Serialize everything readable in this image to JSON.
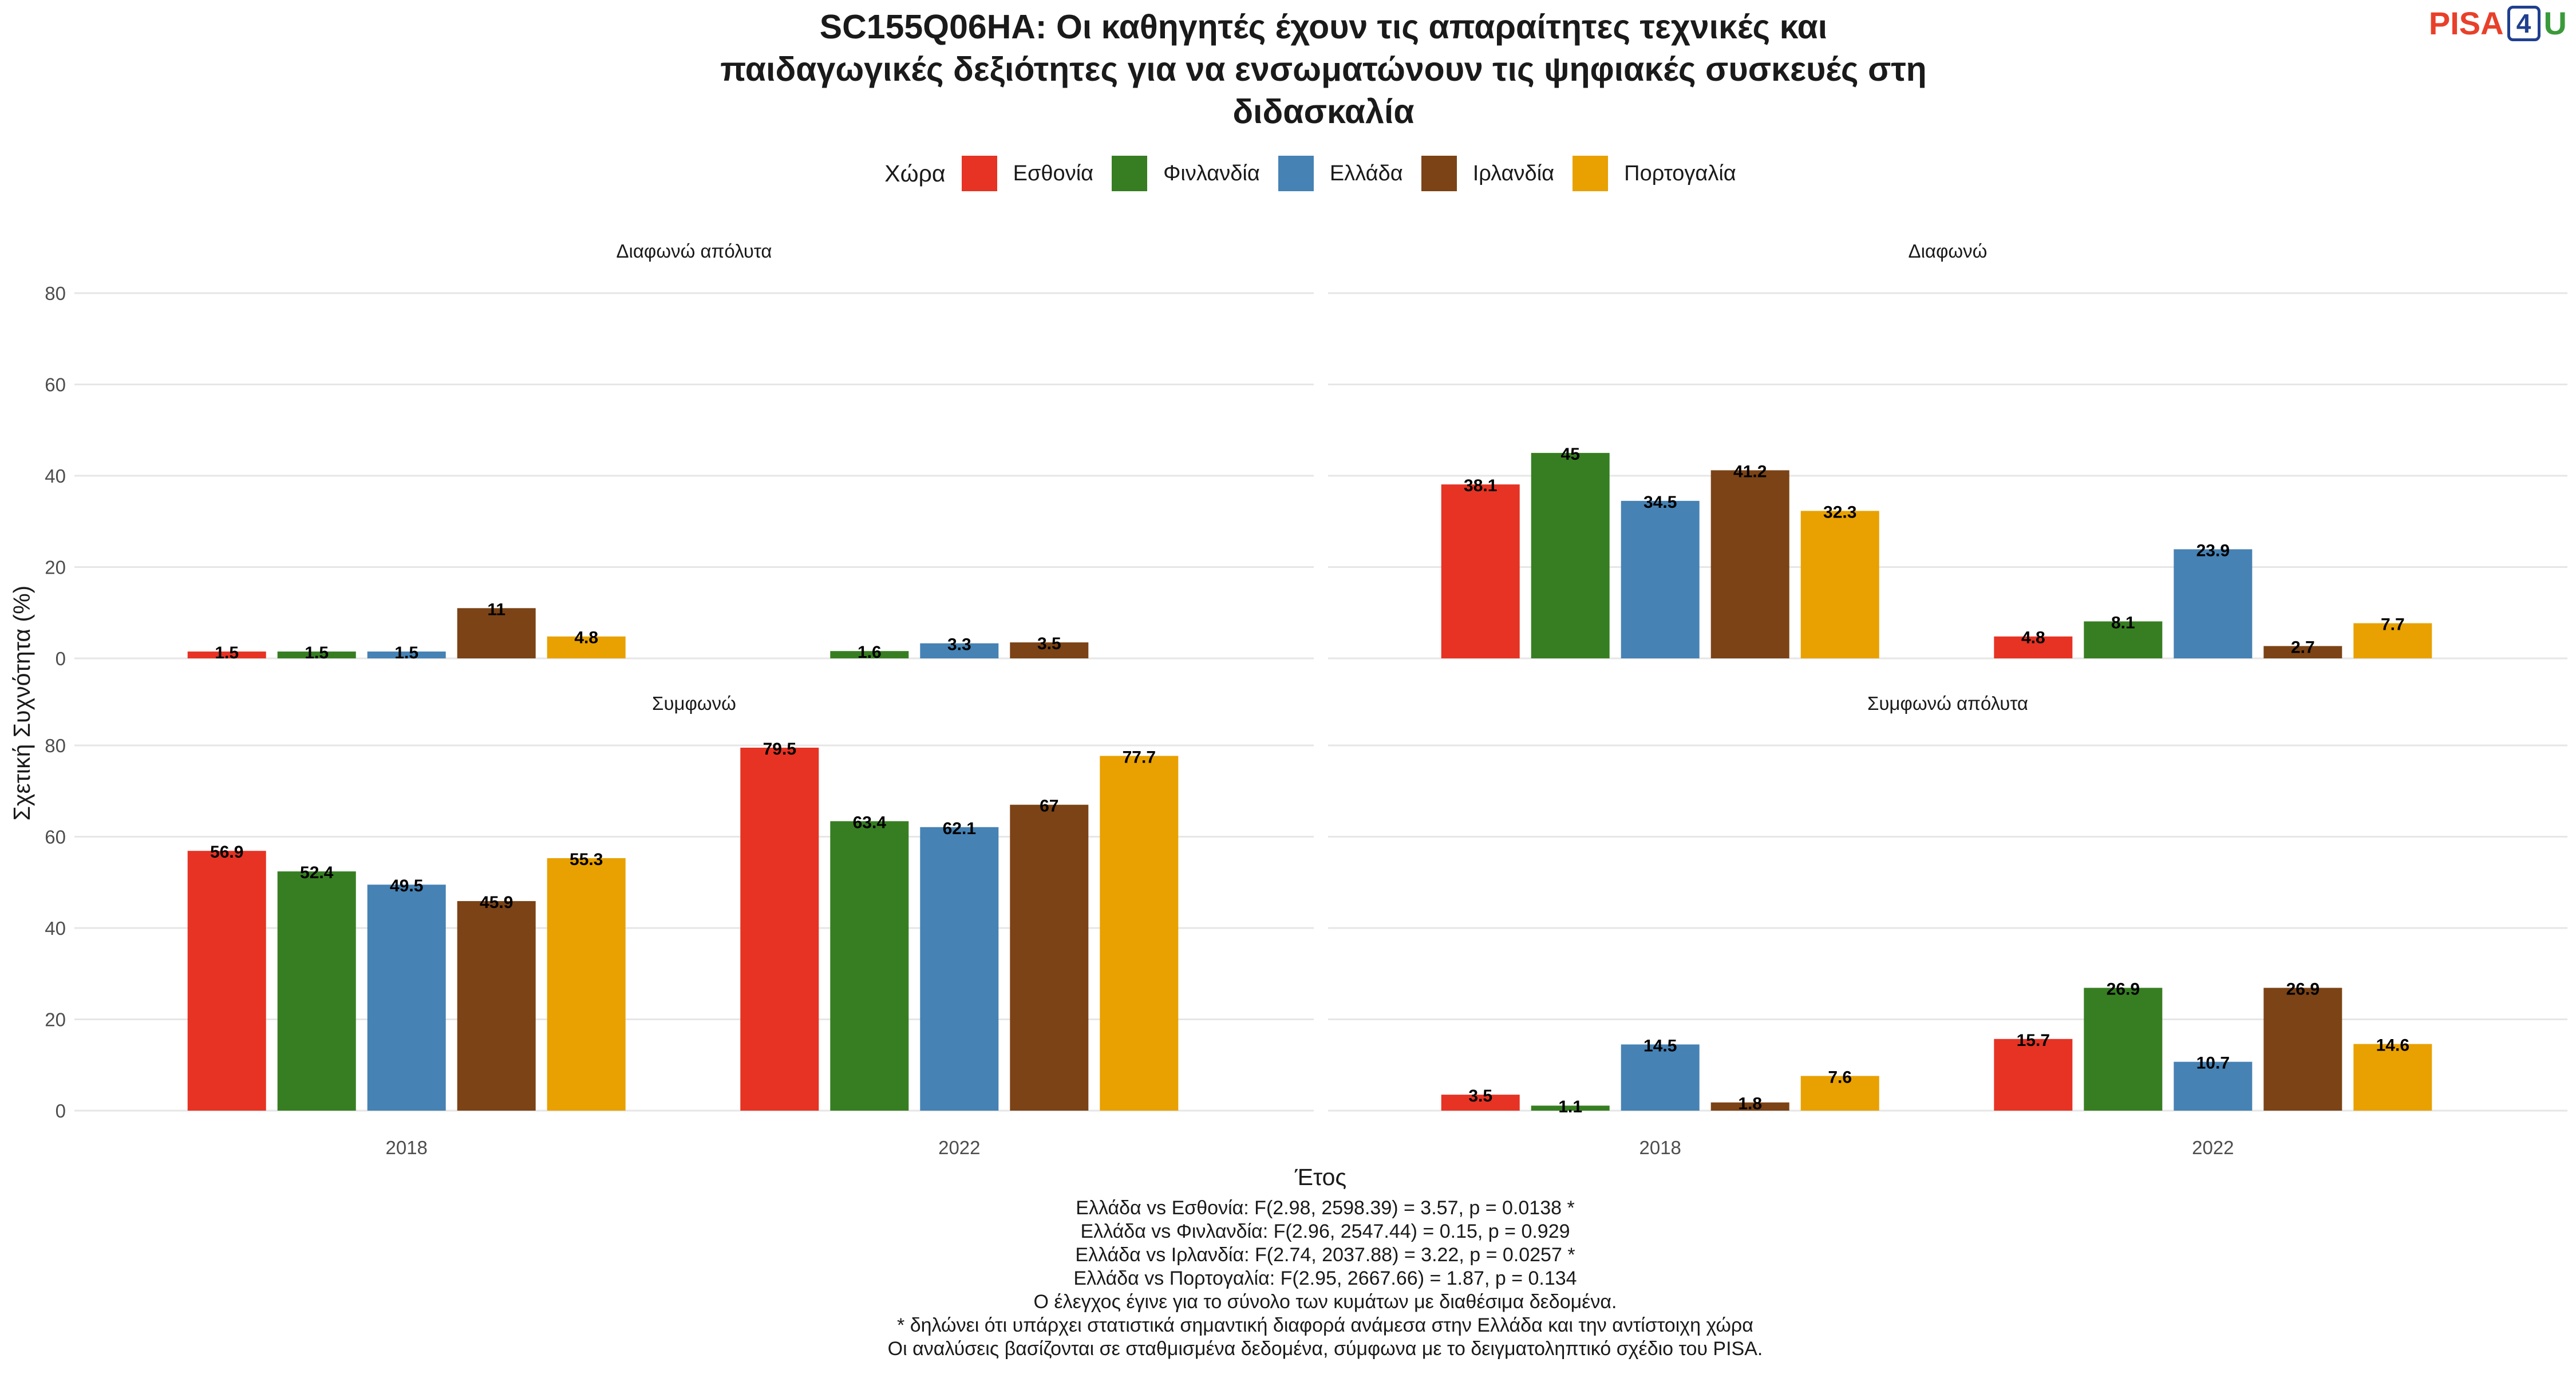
{
  "title_lines": [
    "SC155Q06HA: Οι καθηγητές έχουν τις απαραίτητες τεχνικές και",
    "παιδαγωγικές δεξιότητες για να ενσωματώνουν τις ψηφιακές συσκευές στη",
    "διδασκαλία"
  ],
  "logo": {
    "text": "PISA",
    "digit": "4",
    "suffix": "U"
  },
  "colors": {
    "Εσθονία": "#e63324",
    "Φινλανδία": "#377e22",
    "Ελλάδα": "#4682b4",
    "Ιρλανδία": "#7b4316",
    "Πορτογαλία": "#e8a100"
  },
  "legend": {
    "title": "Χώρα",
    "items": [
      "Εσθονία",
      "Φινλανδία",
      "Ελλάδα",
      "Ιρλανδία",
      "Πορτογαλία"
    ]
  },
  "chart_data": {
    "type": "bar",
    "ylabel": "Σχετική Συχνότητα (%)",
    "xlabel": "Έτος",
    "ylim": [
      0,
      80
    ],
    "yticks": [
      0,
      20,
      40,
      60,
      80
    ],
    "categories": [
      "2018",
      "2022"
    ],
    "grid": true,
    "legend_position": "top",
    "facets": [
      {
        "title": "Διαφωνώ απόλυτα",
        "series": [
          {
            "name": "Εσθονία",
            "values": [
              1.5,
              null
            ]
          },
          {
            "name": "Φινλανδία",
            "values": [
              1.5,
              1.6
            ]
          },
          {
            "name": "Ελλάδα",
            "values": [
              1.5,
              3.3
            ]
          },
          {
            "name": "Ιρλανδία",
            "values": [
              11,
              3.5
            ]
          },
          {
            "name": "Πορτογαλία",
            "values": [
              4.8,
              null
            ]
          }
        ]
      },
      {
        "title": "Διαφωνώ",
        "series": [
          {
            "name": "Εσθονία",
            "values": [
              38.1,
              4.8
            ]
          },
          {
            "name": "Φινλανδία",
            "values": [
              45,
              8.1
            ]
          },
          {
            "name": "Ελλάδα",
            "values": [
              34.5,
              23.9
            ]
          },
          {
            "name": "Ιρλανδία",
            "values": [
              41.2,
              2.7
            ]
          },
          {
            "name": "Πορτογαλία",
            "values": [
              32.3,
              7.7
            ]
          }
        ]
      },
      {
        "title": "Συμφωνώ",
        "series": [
          {
            "name": "Εσθονία",
            "values": [
              56.9,
              79.5
            ]
          },
          {
            "name": "Φινλανδία",
            "values": [
              52.4,
              63.4
            ]
          },
          {
            "name": "Ελλάδα",
            "values": [
              49.5,
              62.1
            ]
          },
          {
            "name": "Ιρλανδία",
            "values": [
              45.9,
              67
            ]
          },
          {
            "name": "Πορτογαλία",
            "values": [
              55.3,
              77.7
            ]
          }
        ]
      },
      {
        "title": "Συμφωνώ απόλυτα",
        "series": [
          {
            "name": "Εσθονία",
            "values": [
              3.5,
              15.7
            ]
          },
          {
            "name": "Φινλανδία",
            "values": [
              1.1,
              26.9
            ]
          },
          {
            "name": "Ελλάδα",
            "values": [
              14.5,
              10.7
            ]
          },
          {
            "name": "Ιρλανδία",
            "values": [
              1.8,
              26.9
            ]
          },
          {
            "name": "Πορτογαλία",
            "values": [
              7.6,
              14.6
            ]
          }
        ]
      }
    ]
  },
  "caption_lines": [
    "Ελλάδα vs Εσθονία: F(2.98, 2598.39) = 3.57, p = 0.0138 *",
    "Ελλάδα vs Φινλανδία: F(2.96, 2547.44) = 0.15, p = 0.929",
    "Ελλάδα vs Ιρλανδία: F(2.74, 2037.88) = 3.22, p = 0.0257 *",
    "Ελλάδα vs Πορτογαλία: F(2.95, 2667.66) = 1.87, p = 0.134",
    "Ο έλεγχος έγινε για το σύνολο των κυμάτων με διαθέσιμα δεδομένα.",
    "* δηλώνει ότι υπάρχει στατιστικά σημαντική διαφορά ανάμεσα στην Ελλάδα και την αντίστοιχη χώρα",
    "Οι αναλύσεις βασίζονται σε σταθμισμένα δεδομένα, σύμφωνα με το δειγματοληπτικό σχέδιο του PISA."
  ]
}
